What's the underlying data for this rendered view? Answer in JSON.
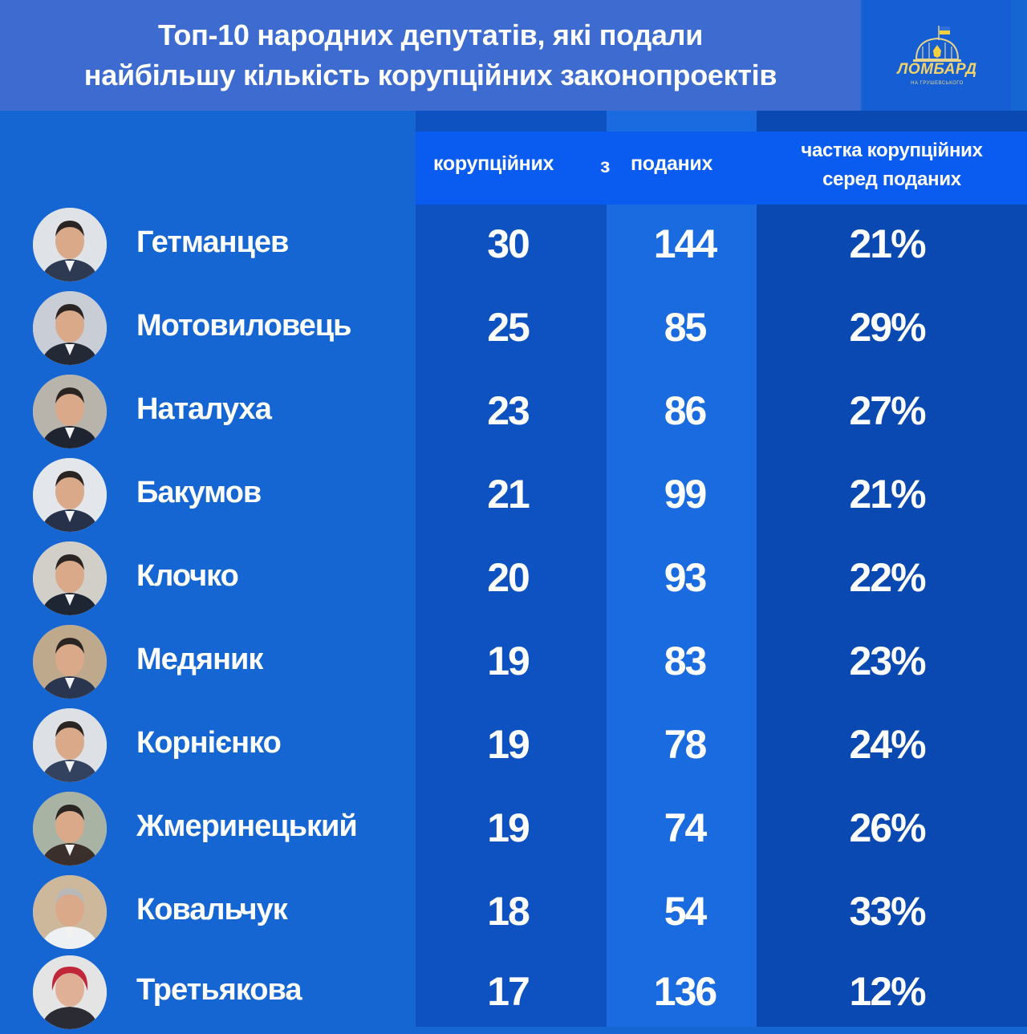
{
  "header": {
    "title_line1": "Топ-10 народних депутатів, які подали",
    "title_line2": "найбільшу кількість корупційних законопроектів"
  },
  "logo": {
    "name": "ЛОМБАРД",
    "sub": "НА ГРУШЕВСЬКОГО",
    "icon": "parliament-dome-flag-icon"
  },
  "colors": {
    "background": "#1565d3",
    "header": "#3d6bd0",
    "column_header": "#0a5cf0",
    "logo_gold": "#f1d36a",
    "flag_blue": "#2f6fd8",
    "flag_yellow": "#f4d03f"
  },
  "chart_data": {
    "type": "table",
    "title": "Топ-10 народних депутатів, які подали найбільшу кількість корупційних законопроектів",
    "columns": {
      "corrupt": "корупційних",
      "connector": "з",
      "submitted": "поданих",
      "share_line1": "частка корупційних",
      "share_line2": "серед поданих"
    },
    "rows": [
      {
        "name": "Гетманцев",
        "corrupt": "30",
        "submitted": "144",
        "share": "21%"
      },
      {
        "name": "Мотовиловець",
        "corrupt": "25",
        "submitted": "85",
        "share": "29%"
      },
      {
        "name": "Наталуха",
        "corrupt": "23",
        "submitted": "86",
        "share": "27%"
      },
      {
        "name": "Бакумов",
        "corrupt": "21",
        "submitted": "99",
        "share": "21%"
      },
      {
        "name": "Клочко",
        "corrupt": "20",
        "submitted": "93",
        "share": "22%"
      },
      {
        "name": "Медяник",
        "corrupt": "19",
        "submitted": "83",
        "share": "23%"
      },
      {
        "name": "Корнієнко",
        "corrupt": "19",
        "submitted": "78",
        "share": "24%"
      },
      {
        "name": "Жмеринецький",
        "corrupt": "19",
        "submitted": "74",
        "share": "26%"
      },
      {
        "name": "Ковальчук",
        "corrupt": "18",
        "submitted": "54",
        "share": "33%"
      },
      {
        "name": "Третьякова",
        "corrupt": "17",
        "submitted": "136",
        "share": "12%"
      }
    ]
  }
}
